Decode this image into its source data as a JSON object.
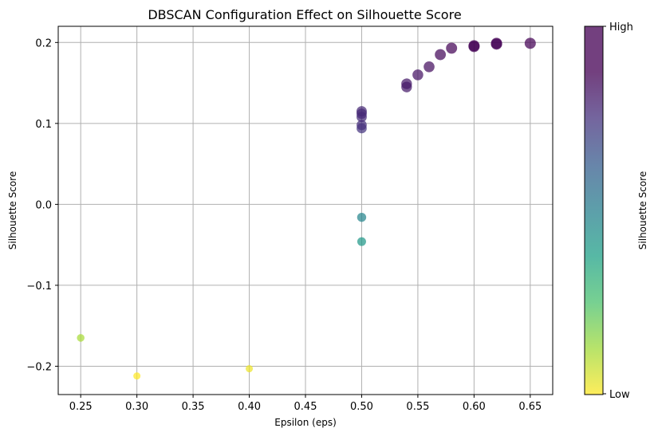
{
  "chart_data": {
    "type": "scatter",
    "title": "DBSCAN Configuration Effect on Silhouette Score",
    "xlabel": "Epsilon (eps)",
    "ylabel": "Silhouette Score",
    "xlim": [
      0.23,
      0.67
    ],
    "ylim": [
      -0.235,
      0.22
    ],
    "xticks": [
      0.25,
      0.3,
      0.35,
      0.4,
      0.45,
      0.5,
      0.55,
      0.6,
      0.65
    ],
    "xtick_labels": [
      "0.25",
      "0.30",
      "0.35",
      "0.40",
      "0.45",
      "0.50",
      "0.55",
      "0.60",
      "0.65"
    ],
    "yticks": [
      -0.2,
      -0.1,
      0.0,
      0.1,
      0.2
    ],
    "ytick_labels": [
      "−0.2",
      "−0.1",
      "0.0",
      "0.1",
      "0.2"
    ],
    "grid": true,
    "colormap": "viridis_r",
    "colorbar": {
      "label": "Silhouette Score",
      "high_label": "High",
      "low_label": "Low"
    },
    "points": [
      {
        "x": 0.25,
        "y": -0.165
      },
      {
        "x": 0.3,
        "y": -0.212
      },
      {
        "x": 0.4,
        "y": -0.203
      },
      {
        "x": 0.5,
        "y": -0.046
      },
      {
        "x": 0.5,
        "y": -0.016
      },
      {
        "x": 0.5,
        "y": 0.094
      },
      {
        "x": 0.5,
        "y": 0.098
      },
      {
        "x": 0.5,
        "y": 0.108
      },
      {
        "x": 0.5,
        "y": 0.112
      },
      {
        "x": 0.5,
        "y": 0.115
      },
      {
        "x": 0.54,
        "y": 0.145
      },
      {
        "x": 0.54,
        "y": 0.149
      },
      {
        "x": 0.55,
        "y": 0.16
      },
      {
        "x": 0.56,
        "y": 0.17
      },
      {
        "x": 0.57,
        "y": 0.185
      },
      {
        "x": 0.58,
        "y": 0.193
      },
      {
        "x": 0.6,
        "y": 0.195
      },
      {
        "x": 0.6,
        "y": 0.196
      },
      {
        "x": 0.62,
        "y": 0.198
      },
      {
        "x": 0.62,
        "y": 0.199
      },
      {
        "x": 0.65,
        "y": 0.199
      }
    ]
  }
}
